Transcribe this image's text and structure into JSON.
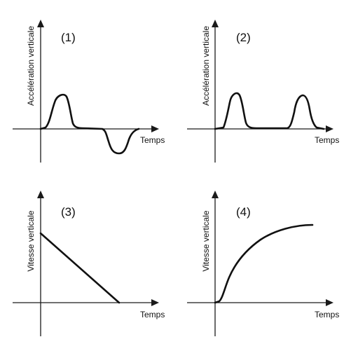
{
  "panels": [
    {
      "label": "(1)",
      "ylabel": "Accélération verticale",
      "xlabel": "Temps",
      "curve": "acceleration-positive-then-negative-pulse"
    },
    {
      "label": "(2)",
      "ylabel": "Accélération verticale",
      "xlabel": "Temps",
      "curve": "acceleration-two-positive-pulses"
    },
    {
      "label": "(3)",
      "ylabel": "Vitesse verticale",
      "xlabel": "Temps",
      "curve": "velocity-linear-decrease"
    },
    {
      "label": "(4)",
      "ylabel": "Vitesse verticale",
      "xlabel": "Temps",
      "curve": "velocity-rising-to-plateau"
    }
  ]
}
